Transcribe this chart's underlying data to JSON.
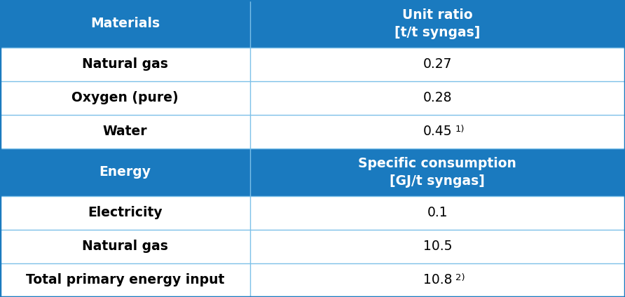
{
  "header_bg": "#1a7abf",
  "header_text": "#ffffff",
  "row_bg_white": "#ffffff",
  "cell_border": "#7cc0e8",
  "outer_border": "#1a7abf",
  "rows": [
    {
      "type": "header",
      "col1": "Materials",
      "col2_line1": "Unit ratio",
      "col2_line2": "[t/t syngas]"
    },
    {
      "type": "data",
      "col1": "Natural gas",
      "col2": "0.27",
      "col2_super": ""
    },
    {
      "type": "data",
      "col1": "Oxygen (pure)",
      "col2": "0.28",
      "col2_super": ""
    },
    {
      "type": "data",
      "col1": "Water",
      "col2": "0.45",
      "col2_super": "1)"
    },
    {
      "type": "header",
      "col1": "Energy",
      "col2_line1": "Specific consumption",
      "col2_line2": "[GJ/t syngas]"
    },
    {
      "type": "data",
      "col1": "Electricity",
      "col2": "0.1",
      "col2_super": ""
    },
    {
      "type": "data",
      "col1": "Natural gas",
      "col2": "10.5",
      "col2_super": ""
    },
    {
      "type": "data",
      "col1": "Total primary energy input",
      "col2": "10.8",
      "col2_super": "2)"
    }
  ],
  "col_split": 0.4,
  "figsize": [
    8.92,
    4.24
  ],
  "dpi": 100,
  "header_fontsize": 13.5,
  "data_fontsize": 13.5
}
